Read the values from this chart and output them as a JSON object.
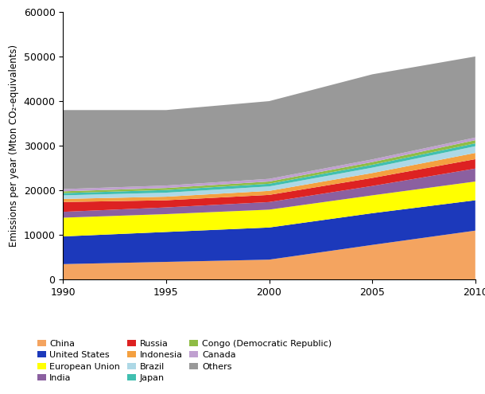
{
  "years": [
    1990,
    1995,
    2000,
    2005,
    2010
  ],
  "series_order": [
    "China",
    "United States",
    "European Union",
    "India",
    "Russia",
    "Indonesia",
    "Brazil",
    "Japan",
    "Congo (Democratic Republic)",
    "Canada",
    "Others"
  ],
  "series": {
    "China": [
      3500,
      4000,
      4500,
      7800,
      11000
    ],
    "United States": [
      6200,
      6700,
      7200,
      7100,
      6800
    ],
    "European Union": [
      4200,
      4000,
      4000,
      4000,
      4200
    ],
    "India": [
      1300,
      1500,
      1700,
      2100,
      2900
    ],
    "Russia": [
      2200,
      1600,
      1600,
      1800,
      2100
    ],
    "Indonesia": [
      700,
      800,
      900,
      1100,
      1400
    ],
    "Brazil": [
      800,
      900,
      1000,
      1200,
      1500
    ],
    "Japan": [
      500,
      600,
      600,
      650,
      650
    ],
    "Congo (Democratic Republic)": [
      400,
      450,
      500,
      600,
      700
    ],
    "Canada": [
      500,
      550,
      600,
      600,
      600
    ],
    "Others": [
      17700,
      16900,
      17400,
      19050,
      18150
    ]
  },
  "colors": {
    "China": "#F4A460",
    "United States": "#1C39BB",
    "European Union": "#FFFF00",
    "India": "#8B60A0",
    "Russia": "#DD2222",
    "Indonesia": "#F4A040",
    "Brazil": "#ADD8E6",
    "Japan": "#40BFB0",
    "Congo (Democratic Republic)": "#8FBC45",
    "Canada": "#C0A0D0",
    "Others": "#999999"
  },
  "ylabel": "Emissions per year (Mton CO₂-equivalents)",
  "ylim": [
    0,
    60000
  ],
  "yticks": [
    0,
    10000,
    20000,
    30000,
    40000,
    50000,
    60000
  ],
  "xlim": [
    1990,
    2010
  ],
  "legend_order": [
    "China",
    "United States",
    "European Union",
    "India",
    "Russia",
    "Indonesia",
    "Brazil",
    "Japan",
    "Congo (Democratic Republic)",
    "Canada",
    "Others"
  ]
}
